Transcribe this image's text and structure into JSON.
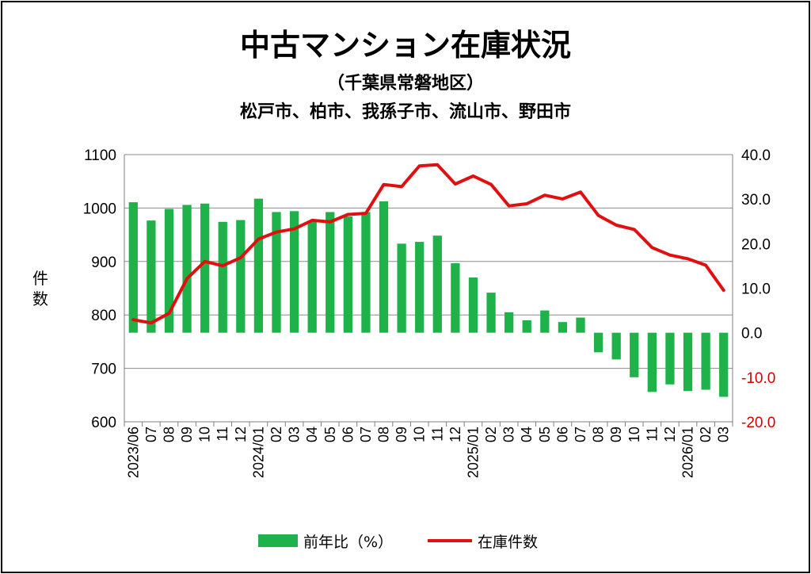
{
  "colors": {
    "bar": "#1fb24a",
    "line": "#e01010",
    "negative_tick": "#d40000",
    "grid": "#8c8c8c",
    "frame": "#000000"
  },
  "chart_data": {
    "type": "bar+line",
    "title": "中古マンション在庫状況",
    "subtitle": "（千葉県常磐地区）",
    "subtitle2": "松戸市、柏市、我孫子市、流山市、野田市",
    "ylabel_left": "件数",
    "ylabel_left_chars": [
      "件",
      "数"
    ],
    "left_axis": {
      "range": [
        600,
        1100
      ],
      "ticks": [
        "1100",
        "1000",
        "900",
        "800",
        "700",
        "600"
      ]
    },
    "right_axis": {
      "range": [
        -20.0,
        40.0
      ],
      "ticks": [
        "40.0",
        "30.0",
        "20.0",
        "10.0",
        "0.0",
        "-10.0",
        "-20.0"
      ]
    },
    "categories": [
      "2023/06",
      "07",
      "08",
      "09",
      "10",
      "11",
      "12",
      "2024/01",
      "02",
      "03",
      "04",
      "05",
      "06",
      "07",
      "08",
      "09",
      "10",
      "11",
      "12",
      "2025/01",
      "02",
      "03",
      "04",
      "05",
      "06",
      "07",
      "08",
      "09",
      "10",
      "11",
      "12",
      "2026/01",
      "02",
      "03"
    ],
    "series": [
      {
        "name": "前年比（%）",
        "type": "bar",
        "axis": "right",
        "values": [
          29.3,
          25.2,
          27.8,
          28.7,
          29.0,
          24.9,
          25.3,
          30.1,
          27.1,
          27.3,
          24.9,
          27.1,
          26.1,
          27.1,
          29.5,
          20.0,
          20.4,
          21.8,
          15.6,
          12.4,
          9.0,
          4.6,
          2.8,
          5.0,
          2.4,
          3.4,
          -4.4,
          -6.0,
          -10.0,
          -13.3,
          -11.6,
          -13.1,
          -12.8,
          -14.4
        ]
      },
      {
        "name": "在庫件数",
        "type": "line",
        "axis": "left",
        "values": [
          791,
          785,
          803,
          868,
          900,
          892,
          907,
          942,
          955,
          961,
          977,
          974,
          988,
          990,
          1044,
          1040,
          1079,
          1081,
          1045,
          1060,
          1044,
          1004,
          1008,
          1024,
          1017,
          1030,
          986,
          968,
          960,
          926,
          912,
          905,
          893,
          846
        ]
      }
    ],
    "legend": {
      "position": "bottom"
    }
  }
}
